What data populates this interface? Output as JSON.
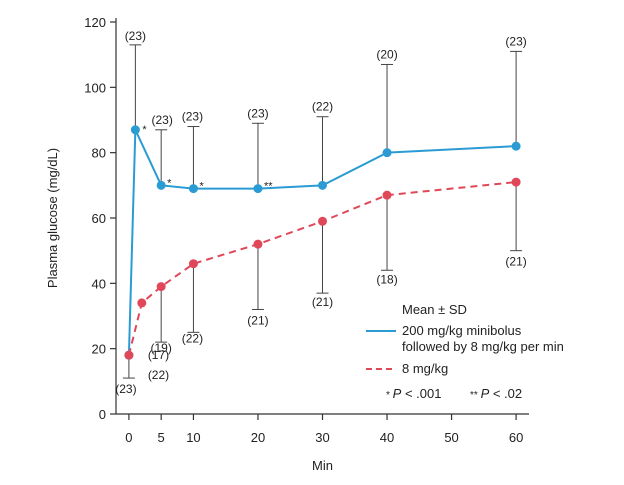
{
  "chart_data": {
    "type": "line",
    "xlabel": "Min",
    "ylabel": "Plasma glucose (mg/dL)",
    "xlim": [
      -2,
      62
    ],
    "ylim": [
      0,
      120
    ],
    "x_ticks": [
      0,
      5,
      10,
      20,
      30,
      40,
      50,
      60
    ],
    "y_ticks": [
      0,
      20,
      40,
      60,
      80,
      100,
      120
    ],
    "grid": false,
    "legend_position": "right, lower-middle",
    "legend": {
      "header": "Mean ± SD",
      "notes": [
        {
          "marker": "*",
          "p_label": "P",
          "p_text": " < .001"
        },
        {
          "marker": "**",
          "p_label": "P",
          "p_text": " < .02"
        }
      ]
    },
    "series": [
      {
        "name": "200 mg/kg minibolus followed by 8 mg/kg per min",
        "legend_lines": [
          "200 mg/kg minibolus",
          "followed by 8 mg/kg per min"
        ],
        "color": "#2b9bd3",
        "style": "solid",
        "x": [
          0,
          1,
          5,
          10,
          20,
          30,
          40,
          60
        ],
        "y": [
          18,
          87,
          70,
          69,
          69,
          70,
          80,
          82
        ],
        "sd_error_caps": [
          null,
          113,
          87,
          88,
          89,
          91,
          107,
          111
        ],
        "n": [
          "",
          "(23)",
          "(23)",
          "(23)",
          "(23)",
          "(22)",
          "(20)",
          "(23)"
        ],
        "significance": [
          "",
          "*",
          "*",
          "*",
          "**",
          "",
          "",
          ""
        ]
      },
      {
        "name": "8 mg/kg",
        "legend_lines": [
          "8 mg/kg"
        ],
        "color": "#e0485a",
        "style": "dashed",
        "x": [
          0,
          2,
          5,
          10,
          20,
          30,
          40,
          60
        ],
        "y": [
          18,
          34,
          39,
          46,
          52,
          59,
          67,
          71
        ],
        "sd_error_caps": [
          11,
          null,
          22,
          25,
          32,
          37,
          44,
          50
        ],
        "n": [
          "(23)",
          "(17)",
          "(19)",
          "(22)",
          "(21)",
          "(21)",
          "(18)",
          "(21)"
        ]
      }
    ],
    "extra_n_labels": [
      "(22)"
    ]
  }
}
